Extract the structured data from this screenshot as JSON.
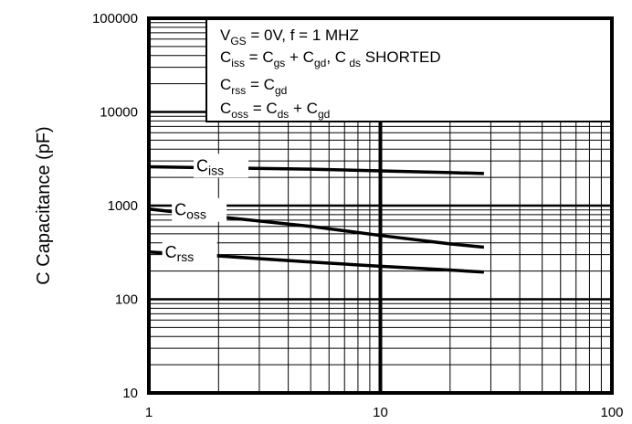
{
  "chart_data": {
    "type": "line",
    "title": "",
    "xlabel": "",
    "ylabel": "C Capacitance (pF)",
    "x_scale": "log",
    "y_scale": "log",
    "xlim": [
      1,
      100
    ],
    "ylim": [
      10,
      100000
    ],
    "x_ticks": [
      "1",
      "10",
      "100"
    ],
    "y_ticks": [
      "10",
      "100",
      "1000",
      "10000",
      "100000"
    ],
    "grid": true,
    "annotations": [
      {
        "base": "V",
        "sub": "GS",
        "text": " = 0V,      f = 1 MHZ"
      },
      {
        "parts": [
          {
            "base": "C",
            "sub": "iss"
          },
          {
            "text": " = C"
          },
          {
            "sub": "gs"
          },
          {
            "text": " + C"
          },
          {
            "sub": "gd"
          },
          {
            "text": ",  C"
          },
          {
            "sub": " ds"
          },
          {
            "text": " SHORTED"
          }
        ]
      },
      {
        "parts": [
          {
            "base": "C",
            "sub": "rss"
          },
          {
            "text": "  = C"
          },
          {
            "sub": "gd"
          }
        ]
      },
      {
        "parts": [
          {
            "base": "C",
            "sub": "oss"
          },
          {
            "text": "  = C"
          },
          {
            "sub": "ds"
          },
          {
            "text": " + C"
          },
          {
            "sub": "gd"
          }
        ]
      }
    ],
    "series": [
      {
        "name": "C",
        "name_sub": "iss",
        "x": [
          1,
          2,
          5,
          10,
          20,
          28
        ],
        "y": [
          2600,
          2530,
          2450,
          2350,
          2250,
          2200
        ]
      },
      {
        "name": "C",
        "name_sub": "oss",
        "x": [
          1,
          2,
          5,
          10,
          20,
          28
        ],
        "y": [
          920,
          760,
          600,
          480,
          390,
          360
        ]
      },
      {
        "name": "C",
        "name_sub": "rss",
        "x": [
          1,
          2,
          5,
          10,
          20,
          28
        ],
        "y": [
          320,
          290,
          250,
          225,
          205,
          195
        ]
      }
    ]
  }
}
